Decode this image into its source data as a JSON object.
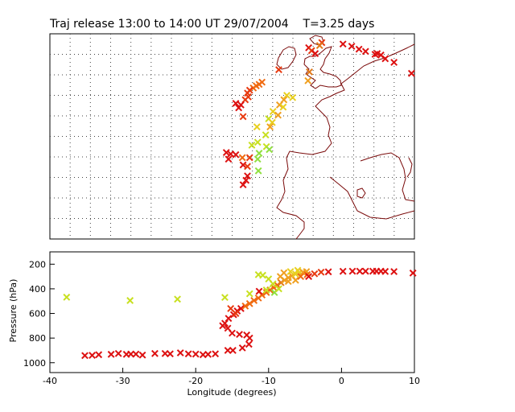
{
  "title": "Traj release 13:00 to 14:00 UT 29/07/2004    T=3.25 days",
  "colors": {
    "red": "#dd1111",
    "red_orange": "#e83a10",
    "orange": "#f06a10",
    "dark_orange": "#e0781a",
    "amber": "#f0a020",
    "yellow": "#e8d020",
    "yellow_green": "#c8e020",
    "green": "#90e040",
    "coast": "#7a0a0a",
    "grid": "#444444"
  },
  "chart_data": [
    {
      "type": "scatter",
      "name": "map",
      "xlim": [
        -40,
        10
      ],
      "ylim": [
        30,
        58
      ],
      "grid": true,
      "points": [
        {
          "x": -4.5,
          "y": 56.1,
          "c": "red"
        },
        {
          "x": -2.7,
          "y": 56.8,
          "c": "red_orange"
        },
        {
          "x": -3.0,
          "y": 56.4,
          "c": "dark_orange"
        },
        {
          "x": 0.2,
          "y": 56.6,
          "c": "red"
        },
        {
          "x": 1.4,
          "y": 56.3,
          "c": "red"
        },
        {
          "x": 2.4,
          "y": 55.9,
          "c": "red"
        },
        {
          "x": 3.3,
          "y": 55.6,
          "c": "red"
        },
        {
          "x": 4.6,
          "y": 55.2,
          "c": "red"
        },
        {
          "x": 4.9,
          "y": 55.3,
          "c": "red"
        },
        {
          "x": 5.4,
          "y": 55.1,
          "c": "red"
        },
        {
          "x": 6.0,
          "y": 54.6,
          "c": "red"
        },
        {
          "x": 7.2,
          "y": 54.1,
          "c": "red"
        },
        {
          "x": 9.6,
          "y": 52.6,
          "c": "red"
        },
        {
          "x": -4.1,
          "y": 55.7,
          "c": "red_orange"
        },
        {
          "x": -3.6,
          "y": 55.3,
          "c": "red"
        },
        {
          "x": -8.6,
          "y": 53.1,
          "c": "red_orange"
        },
        {
          "x": -4.4,
          "y": 52.8,
          "c": "dark_orange"
        },
        {
          "x": -4.6,
          "y": 51.6,
          "c": "amber"
        },
        {
          "x": -10.9,
          "y": 51.4,
          "c": "orange"
        },
        {
          "x": -11.3,
          "y": 51.1,
          "c": "orange"
        },
        {
          "x": -11.7,
          "y": 50.9,
          "c": "orange"
        },
        {
          "x": -12.1,
          "y": 50.6,
          "c": "orange"
        },
        {
          "x": -12.6,
          "y": 50.3,
          "c": "red_orange"
        },
        {
          "x": -12.9,
          "y": 49.9,
          "c": "red_orange"
        },
        {
          "x": -12.8,
          "y": 49.4,
          "c": "red_orange"
        },
        {
          "x": -13.2,
          "y": 49.0,
          "c": "red_orange"
        },
        {
          "x": -14.5,
          "y": 48.5,
          "c": "red"
        },
        {
          "x": -13.8,
          "y": 48.3,
          "c": "red"
        },
        {
          "x": -14.1,
          "y": 47.9,
          "c": "red"
        },
        {
          "x": -13.5,
          "y": 46.7,
          "c": "red_orange"
        },
        {
          "x": -7.5,
          "y": 49.6,
          "c": "yellow"
        },
        {
          "x": -6.7,
          "y": 49.3,
          "c": "yellow"
        },
        {
          "x": -7.9,
          "y": 49.0,
          "c": "amber"
        },
        {
          "x": -8.5,
          "y": 48.3,
          "c": "amber"
        },
        {
          "x": -8.0,
          "y": 48.0,
          "c": "yellow"
        },
        {
          "x": -9.4,
          "y": 47.4,
          "c": "yellow"
        },
        {
          "x": -8.7,
          "y": 46.9,
          "c": "amber"
        },
        {
          "x": -10.0,
          "y": 46.4,
          "c": "yellow_green"
        },
        {
          "x": -9.5,
          "y": 45.9,
          "c": "yellow"
        },
        {
          "x": -9.8,
          "y": 45.3,
          "c": "amber"
        },
        {
          "x": -11.6,
          "y": 45.3,
          "c": "yellow"
        },
        {
          "x": -10.4,
          "y": 44.2,
          "c": "yellow_green"
        },
        {
          "x": -11.5,
          "y": 43.2,
          "c": "yellow_green"
        },
        {
          "x": -12.3,
          "y": 42.8,
          "c": "yellow_green"
        },
        {
          "x": -10.3,
          "y": 42.6,
          "c": "yellow_green"
        },
        {
          "x": -9.9,
          "y": 42.2,
          "c": "green"
        },
        {
          "x": -11.3,
          "y": 41.7,
          "c": "green"
        },
        {
          "x": -15.8,
          "y": 41.8,
          "c": "red"
        },
        {
          "x": -15.2,
          "y": 41.6,
          "c": "red"
        },
        {
          "x": -14.5,
          "y": 41.5,
          "c": "red"
        },
        {
          "x": -13.6,
          "y": 41.1,
          "c": "orange"
        },
        {
          "x": -12.6,
          "y": 41.1,
          "c": "red_orange"
        },
        {
          "x": -15.5,
          "y": 40.9,
          "c": "red"
        },
        {
          "x": -13.5,
          "y": 40.1,
          "c": "red"
        },
        {
          "x": -12.9,
          "y": 39.9,
          "c": "red_orange"
        },
        {
          "x": -11.5,
          "y": 40.9,
          "c": "green"
        },
        {
          "x": -11.4,
          "y": 39.3,
          "c": "green"
        },
        {
          "x": -12.9,
          "y": 38.6,
          "c": "red"
        },
        {
          "x": -13.1,
          "y": 38.0,
          "c": "red"
        },
        {
          "x": -13.5,
          "y": 37.4,
          "c": "red"
        }
      ]
    },
    {
      "type": "scatter",
      "name": "pressure",
      "xlabel": "Longitude  (degrees)",
      "ylabel": "Pressure  (hPa)",
      "xlim": [
        -40,
        10
      ],
      "ylim": [
        1080,
        100
      ],
      "xticks": [
        -40,
        -30,
        -20,
        -10,
        0,
        10
      ],
      "yticks": [
        200,
        400,
        600,
        800,
        1000
      ],
      "points": [
        {
          "x": -35.2,
          "y": 942,
          "c": "red"
        },
        {
          "x": -34.2,
          "y": 940,
          "c": "red"
        },
        {
          "x": -33.3,
          "y": 935,
          "c": "red"
        },
        {
          "x": -31.6,
          "y": 932,
          "c": "red"
        },
        {
          "x": -30.6,
          "y": 925,
          "c": "red"
        },
        {
          "x": -29.5,
          "y": 932,
          "c": "red"
        },
        {
          "x": -28.9,
          "y": 930,
          "c": "red"
        },
        {
          "x": -28.2,
          "y": 930,
          "c": "red"
        },
        {
          "x": -27.3,
          "y": 938,
          "c": "red"
        },
        {
          "x": -25.6,
          "y": 925,
          "c": "red"
        },
        {
          "x": -24.2,
          "y": 925,
          "c": "red"
        },
        {
          "x": -23.5,
          "y": 928,
          "c": "red"
        },
        {
          "x": -22.1,
          "y": 920,
          "c": "red"
        },
        {
          "x": -21.0,
          "y": 928,
          "c": "red"
        },
        {
          "x": -20.0,
          "y": 930,
          "c": "red"
        },
        {
          "x": -19.0,
          "y": 935,
          "c": "red"
        },
        {
          "x": -18.3,
          "y": 932,
          "c": "red"
        },
        {
          "x": -17.3,
          "y": 928,
          "c": "red"
        },
        {
          "x": -15.6,
          "y": 900,
          "c": "red"
        },
        {
          "x": -14.9,
          "y": 900,
          "c": "red"
        },
        {
          "x": -13.6,
          "y": 880,
          "c": "red"
        },
        {
          "x": -12.7,
          "y": 850,
          "c": "red"
        },
        {
          "x": -12.6,
          "y": 800,
          "c": "red"
        },
        {
          "x": -13.0,
          "y": 775,
          "c": "red"
        },
        {
          "x": -14.0,
          "y": 770,
          "c": "red"
        },
        {
          "x": -15.0,
          "y": 760,
          "c": "red"
        },
        {
          "x": -15.6,
          "y": 720,
          "c": "red"
        },
        {
          "x": -16.3,
          "y": 700,
          "c": "red"
        },
        {
          "x": -16.0,
          "y": 680,
          "c": "red"
        },
        {
          "x": -15.5,
          "y": 640,
          "c": "red"
        },
        {
          "x": -14.8,
          "y": 610,
          "c": "red"
        },
        {
          "x": -14.3,
          "y": 580,
          "c": "red"
        },
        {
          "x": -13.8,
          "y": 560,
          "c": "red"
        },
        {
          "x": -15.2,
          "y": 560,
          "c": "red_orange"
        },
        {
          "x": -14.5,
          "y": 600,
          "c": "red_orange"
        },
        {
          "x": -13.2,
          "y": 540,
          "c": "orange"
        },
        {
          "x": -12.6,
          "y": 520,
          "c": "orange"
        },
        {
          "x": -12.0,
          "y": 495,
          "c": "orange"
        },
        {
          "x": -11.4,
          "y": 475,
          "c": "orange"
        },
        {
          "x": -10.9,
          "y": 450,
          "c": "orange"
        },
        {
          "x": -10.3,
          "y": 430,
          "c": "orange"
        },
        {
          "x": -9.8,
          "y": 410,
          "c": "orange"
        },
        {
          "x": -9.3,
          "y": 390,
          "c": "orange"
        },
        {
          "x": -8.8,
          "y": 370,
          "c": "orange"
        },
        {
          "x": -8.3,
          "y": 350,
          "c": "dark_orange"
        },
        {
          "x": -11.3,
          "y": 420,
          "c": "red"
        },
        {
          "x": -7.8,
          "y": 330,
          "c": "amber"
        },
        {
          "x": -7.3,
          "y": 310,
          "c": "amber"
        },
        {
          "x": -6.8,
          "y": 295,
          "c": "amber"
        },
        {
          "x": -6.3,
          "y": 280,
          "c": "yellow"
        },
        {
          "x": -5.8,
          "y": 270,
          "c": "yellow"
        },
        {
          "x": -5.3,
          "y": 265,
          "c": "amber"
        },
        {
          "x": -4.8,
          "y": 260,
          "c": "amber"
        },
        {
          "x": -6.0,
          "y": 250,
          "c": "yellow"
        },
        {
          "x": -7.0,
          "y": 260,
          "c": "yellow"
        },
        {
          "x": -7.9,
          "y": 270,
          "c": "amber"
        },
        {
          "x": -8.4,
          "y": 300,
          "c": "amber"
        },
        {
          "x": -7.3,
          "y": 340,
          "c": "amber"
        },
        {
          "x": -6.3,
          "y": 330,
          "c": "amber"
        },
        {
          "x": -5.6,
          "y": 300,
          "c": "orange"
        },
        {
          "x": -4.7,
          "y": 285,
          "c": "orange"
        },
        {
          "x": -3.7,
          "y": 278,
          "c": "red_orange"
        },
        {
          "x": -2.8,
          "y": 265,
          "c": "red_orange"
        },
        {
          "x": -1.8,
          "y": 262,
          "c": "red"
        },
        {
          "x": 0.2,
          "y": 258,
          "c": "red"
        },
        {
          "x": 1.5,
          "y": 257,
          "c": "red"
        },
        {
          "x": 2.5,
          "y": 257,
          "c": "red"
        },
        {
          "x": 3.3,
          "y": 257,
          "c": "red"
        },
        {
          "x": 4.3,
          "y": 257,
          "c": "red"
        },
        {
          "x": 4.8,
          "y": 257,
          "c": "red"
        },
        {
          "x": 5.4,
          "y": 257,
          "c": "red"
        },
        {
          "x": 6.0,
          "y": 259,
          "c": "red"
        },
        {
          "x": 7.2,
          "y": 260,
          "c": "red"
        },
        {
          "x": 9.8,
          "y": 272,
          "c": "red"
        },
        {
          "x": -4.5,
          "y": 300,
          "c": "red"
        },
        {
          "x": -37.7,
          "y": 468,
          "c": "yellow_green"
        },
        {
          "x": -29.0,
          "y": 495,
          "c": "yellow_green"
        },
        {
          "x": -22.5,
          "y": 484,
          "c": "yellow_green"
        },
        {
          "x": -16.0,
          "y": 470,
          "c": "yellow_green"
        },
        {
          "x": -11.4,
          "y": 285,
          "c": "yellow_green"
        },
        {
          "x": -10.8,
          "y": 290,
          "c": "yellow_green"
        },
        {
          "x": -10.0,
          "y": 320,
          "c": "yellow_green"
        },
        {
          "x": -9.4,
          "y": 360,
          "c": "yellow_green"
        },
        {
          "x": -10.3,
          "y": 410,
          "c": "yellow_green"
        },
        {
          "x": -9.2,
          "y": 430,
          "c": "green"
        },
        {
          "x": -8.6,
          "y": 400,
          "c": "yellow_green"
        },
        {
          "x": -12.6,
          "y": 440,
          "c": "yellow_green"
        }
      ]
    }
  ]
}
